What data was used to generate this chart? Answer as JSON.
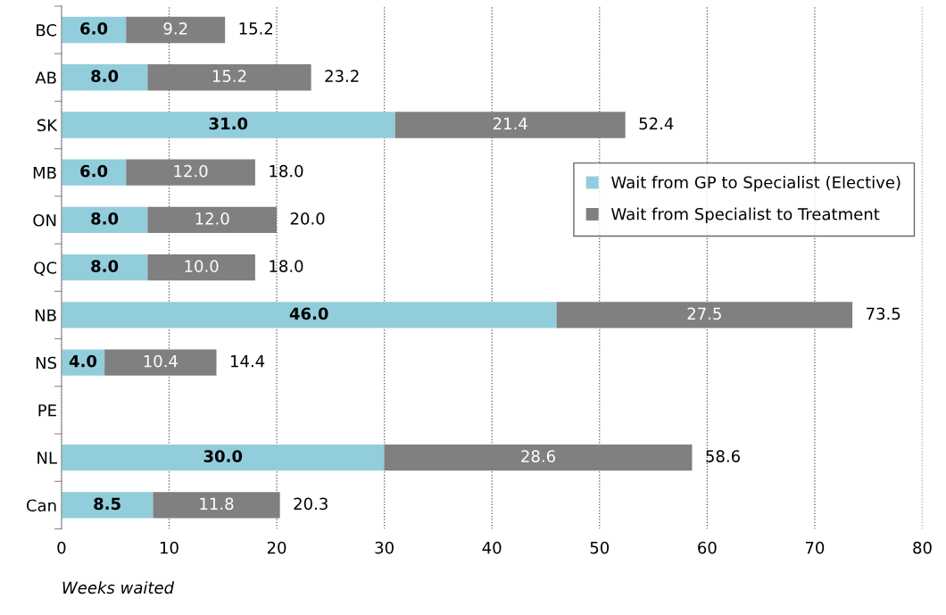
{
  "chart_data": {
    "type": "bar",
    "orientation": "horizontal",
    "stacked": true,
    "categories": [
      "BC",
      "AB",
      "SK",
      "MB",
      "ON",
      "QC",
      "NB",
      "NS",
      "PE",
      "NL",
      "Can"
    ],
    "series": [
      {
        "name": "Wait from GP to Specialist (Elective)",
        "color": "#92cddc",
        "values": [
          6.0,
          8.0,
          31.0,
          6.0,
          8.0,
          8.0,
          46.0,
          4.0,
          null,
          30.0,
          8.5
        ],
        "value_labels": [
          "6.0",
          "8.0",
          "31.0",
          "6.0",
          "8.0",
          "8.0",
          "46.0",
          "4.0",
          null,
          "30.0",
          "8.5"
        ]
      },
      {
        "name": "Wait from Specialist to Treatment",
        "color": "#808080",
        "values": [
          9.2,
          15.2,
          21.4,
          12.0,
          12.0,
          10.0,
          27.5,
          10.4,
          null,
          28.6,
          11.8
        ],
        "value_labels": [
          "9.2",
          "15.2",
          "21.4",
          "12.0",
          "12.0",
          "10.0",
          "27.5",
          "10.4",
          null,
          "28.6",
          "11.8"
        ]
      }
    ],
    "totals": [
      "15.2",
      "23.2",
      "52.4",
      "18.0",
      "20.0",
      "18.0",
      "73.5",
      "14.4",
      null,
      "58.6",
      "20.3"
    ],
    "xlim": [
      0,
      80
    ],
    "xticks": [
      0,
      10,
      20,
      30,
      40,
      50,
      60,
      70,
      80
    ],
    "xlabel": "Weeks waited",
    "grid": "x",
    "legend": "right"
  }
}
